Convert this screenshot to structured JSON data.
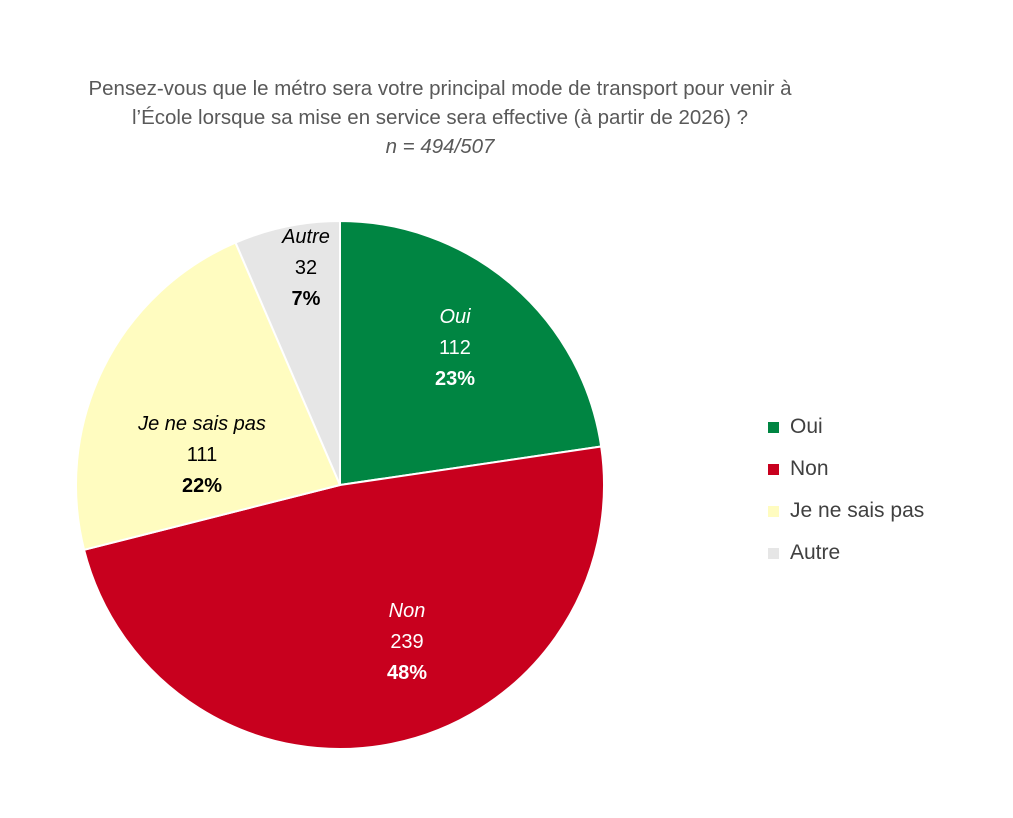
{
  "chart_data": {
    "type": "pie",
    "title": "Pensez-vous que le métro sera votre principal mode de transport pour venir à",
    "title_line2": "l’École lorsque sa mise en service sera effective (à partir de 2026) ?",
    "subtitle": "n = 494/507",
    "slices": [
      {
        "label": "Oui",
        "count": "112",
        "percent": "23%",
        "value": 112,
        "color": "#008542"
      },
      {
        "label": "Non",
        "count": "239",
        "percent": "48%",
        "value": 239,
        "color": "#C8001E"
      },
      {
        "label": "Je ne sais pas",
        "count": "111",
        "percent": "22%",
        "value": 111,
        "color": "#FFFCC0"
      },
      {
        "label": "Autre",
        "count": "32",
        "percent": "7%",
        "value": 32,
        "color": "#E6E6E6"
      }
    ],
    "legend": [
      "Oui",
      "Non",
      "Je ne sais pas",
      "Autre"
    ],
    "legend_position": "right"
  }
}
